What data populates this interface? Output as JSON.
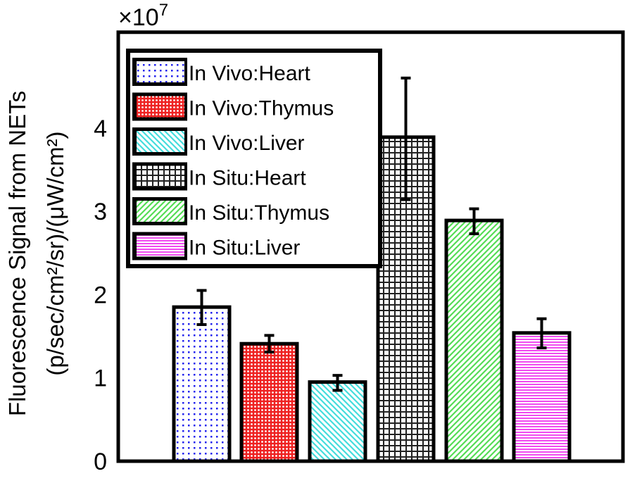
{
  "chart_data": {
    "type": "bar",
    "title": "",
    "xlabel": "",
    "ylabel_line1": "Fluorescence Signal from NETs",
    "ylabel_line2": "(p/sec/cm²/sr)/(μW/cm²)",
    "y_multiplier": "×10",
    "y_multiplier_exponent": "7",
    "ylim": [
      0,
      5.15
    ],
    "yticks": [
      "0",
      "1",
      "2",
      "3",
      "4"
    ],
    "grid": false,
    "legend_placement": "top-left",
    "categories": [
      "In Vivo:Heart",
      "In Vivo:Thymus",
      "In Vivo:Liver",
      "In Situ:Heart",
      "In Situ:Thymus",
      "In Situ:Liver"
    ],
    "values": [
      1.85,
      1.41,
      0.95,
      3.89,
      2.89,
      1.54
    ],
    "error_low": [
      1.64,
      1.31,
      0.85,
      3.14,
      2.73,
      1.36
    ],
    "error_high": [
      2.05,
      1.51,
      1.03,
      4.6,
      3.03,
      1.71
    ],
    "patterns": [
      "dots",
      "checker",
      "diagonal-down",
      "grid",
      "diagonal-up",
      "horizontal"
    ],
    "colors": [
      "#2222ee",
      "#ee2222",
      "#44dddd",
      "#222222",
      "#55dd55",
      "#ee33ee"
    ]
  }
}
